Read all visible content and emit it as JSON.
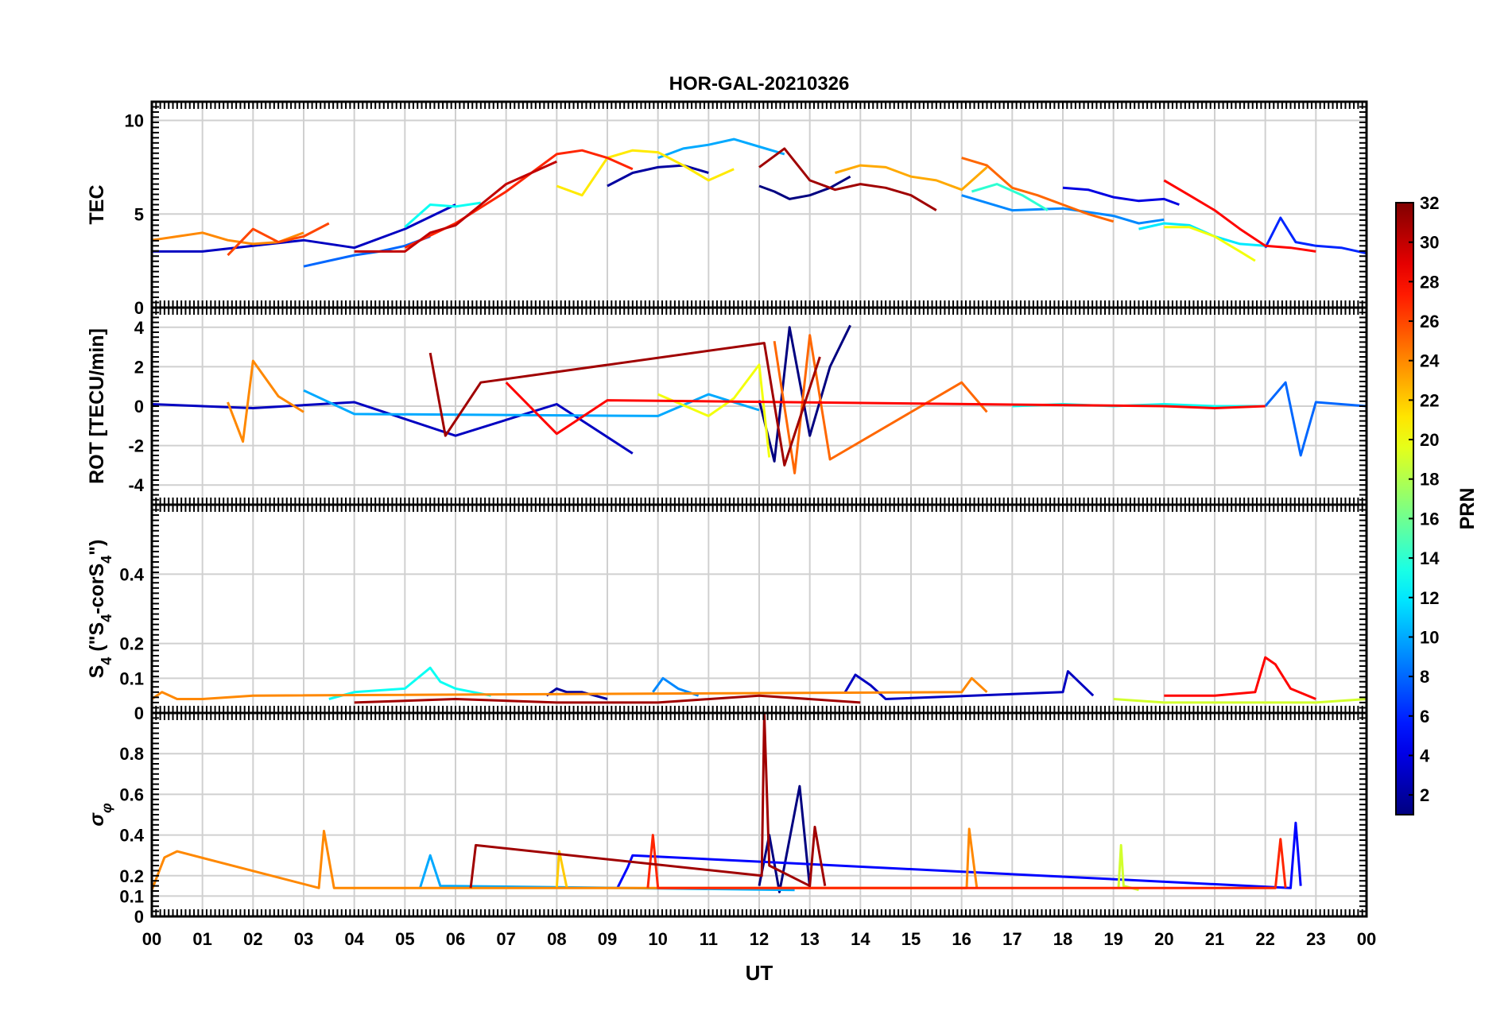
{
  "chart_data": {
    "type": "line",
    "title": "HOR-GAL-20210326",
    "xlabel": "UT",
    "x_ticks": [
      "00",
      "01",
      "02",
      "03",
      "04",
      "05",
      "06",
      "07",
      "08",
      "09",
      "10",
      "11",
      "12",
      "13",
      "14",
      "15",
      "16",
      "17",
      "18",
      "19",
      "20",
      "21",
      "22",
      "23",
      "00"
    ],
    "xlim_hours": [
      0,
      24
    ],
    "colorbar": {
      "label": "PRN",
      "range": [
        1,
        32
      ],
      "ticks": [
        "2",
        "4",
        "6",
        "8",
        "10",
        "12",
        "14",
        "16",
        "18",
        "20",
        "22",
        "24",
        "26",
        "28",
        "30",
        "32"
      ],
      "colormap": "jet"
    },
    "panels": [
      {
        "id": "tec",
        "ylabel": "TEC",
        "ylim": [
          0,
          11
        ],
        "yticks": [
          0,
          5,
          10
        ],
        "ytick_labels": [
          "0",
          "5",
          "10"
        ],
        "series": [
          {
            "prn": 1,
            "x": [
              12.0,
              12.3,
              12.6,
              13.0,
              13.4,
              13.8
            ],
            "y": [
              6.5,
              6.2,
              5.8,
              6.0,
              6.4,
              7.0
            ]
          },
          {
            "prn": 2,
            "x": [
              9.0,
              9.5,
              10.0,
              10.5,
              11.0
            ],
            "y": [
              6.5,
              7.2,
              7.5,
              7.6,
              7.2
            ]
          },
          {
            "prn": 3,
            "x": [
              0.0,
              1.0,
              2.0,
              3.0,
              4.0,
              5.0,
              6.0
            ],
            "y": [
              3.0,
              3.0,
              3.3,
              3.6,
              3.2,
              4.2,
              5.5
            ]
          },
          {
            "prn": 4,
            "x": [
              18.0,
              18.5,
              19.0,
              19.5,
              20.0,
              20.3
            ],
            "y": [
              6.4,
              6.3,
              5.9,
              5.7,
              5.8,
              5.5
            ]
          },
          {
            "prn": 6,
            "x": [
              22.0,
              22.3,
              22.6,
              23.0,
              23.5,
              24.0
            ],
            "y": [
              3.2,
              4.8,
              3.5,
              3.3,
              3.2,
              2.9
            ]
          },
          {
            "prn": 8,
            "x": [
              3.0,
              3.5,
              4.0,
              4.5,
              5.0,
              5.5
            ],
            "y": [
              2.2,
              2.5,
              2.8,
              3.0,
              3.3,
              3.8
            ]
          },
          {
            "prn": 9,
            "x": [
              16.0,
              17.0,
              18.0,
              19.0,
              19.5,
              20.0
            ],
            "y": [
              6.0,
              5.2,
              5.3,
              4.9,
              4.5,
              4.7
            ]
          },
          {
            "prn": 10,
            "x": [
              10.0,
              10.5,
              11.0,
              11.5,
              12.0,
              12.5
            ],
            "y": [
              8.0,
              8.5,
              8.7,
              9.0,
              8.6,
              8.2
            ]
          },
          {
            "prn": 12,
            "x": [
              19.5,
              20.0,
              20.5,
              21.0,
              21.5,
              22.0
            ],
            "y": [
              4.2,
              4.5,
              4.4,
              3.8,
              3.4,
              3.3
            ]
          },
          {
            "prn": 13,
            "x": [
              5.0,
              5.5,
              6.0,
              6.5
            ],
            "y": [
              4.3,
              5.5,
              5.4,
              5.6
            ]
          },
          {
            "prn": 14,
            "x": [
              16.2,
              16.7,
              17.2,
              17.7
            ],
            "y": [
              6.2,
              6.6,
              6.0,
              5.2
            ]
          },
          {
            "prn": 20,
            "x": [
              20.0,
              20.5,
              21.0,
              21.5,
              21.8
            ],
            "y": [
              4.3,
              4.3,
              3.8,
              3.0,
              2.5
            ]
          },
          {
            "prn": 21,
            "x": [
              8.0,
              8.5,
              9.0,
              9.5,
              10.0,
              10.5,
              11.0,
              11.5
            ],
            "y": [
              6.5,
              6.0,
              8.0,
              8.4,
              8.3,
              7.6,
              6.8,
              7.4
            ]
          },
          {
            "prn": 23,
            "x": [
              13.5,
              14.0,
              14.5,
              15.0,
              15.5,
              16.0,
              16.5
            ],
            "y": [
              7.2,
              7.6,
              7.5,
              7.0,
              6.8,
              6.3,
              7.5
            ]
          },
          {
            "prn": 24,
            "x": [
              0.0,
              0.5,
              1.0,
              1.5,
              2.0,
              2.5,
              3.0
            ],
            "y": [
              3.6,
              3.8,
              4.0,
              3.6,
              3.4,
              3.5,
              4.0
            ]
          },
          {
            "prn": 25,
            "x": [
              16.0,
              16.5,
              17.0,
              17.5,
              18.0,
              18.5,
              19.0
            ],
            "y": [
              8.0,
              7.6,
              6.4,
              6.0,
              5.5,
              5.0,
              4.6
            ]
          },
          {
            "prn": 26,
            "x": [
              1.5,
              2.0,
              2.5,
              3.0,
              3.5
            ],
            "y": [
              2.8,
              4.2,
              3.5,
              3.8,
              4.5
            ]
          },
          {
            "prn": 27,
            "x": [
              5.0,
              6.0,
              7.0,
              7.5,
              8.0,
              8.5,
              9.0,
              9.5
            ],
            "y": [
              3.2,
              4.5,
              6.2,
              7.2,
              8.2,
              8.4,
              8.0,
              7.4
            ]
          },
          {
            "prn": 28,
            "x": [
              20.0,
              20.5,
              21.0,
              21.5,
              22.0,
              22.5,
              23.0
            ],
            "y": [
              6.8,
              6.0,
              5.2,
              4.2,
              3.3,
              3.2,
              3.0
            ]
          },
          {
            "prn": 30,
            "x": [
              4.0,
              5.0,
              5.5,
              6.0,
              6.5,
              7.0,
              7.5,
              8.0
            ],
            "y": [
              3.0,
              3.0,
              4.0,
              4.4,
              5.5,
              6.6,
              7.2,
              7.8
            ]
          },
          {
            "prn": 31,
            "x": [
              12.0,
              12.5,
              13.0,
              13.5,
              14.0,
              14.5,
              15.0,
              15.5
            ],
            "y": [
              7.5,
              8.5,
              6.8,
              6.3,
              6.6,
              6.4,
              6.0,
              5.2
            ]
          }
        ]
      },
      {
        "id": "rot",
        "ylabel": "ROT [TECU/min]",
        "ylim": [
          -5,
          5
        ],
        "yticks": [
          -4,
          -2,
          0,
          2,
          4
        ],
        "ytick_labels": [
          "-4",
          "-2",
          "0",
          "2",
          "4"
        ],
        "series": [
          {
            "prn": 1,
            "x": [
              12.0,
              12.3,
              12.6,
              13.0,
              13.4,
              13.8
            ],
            "y": [
              0.3,
              -2.8,
              4.0,
              -1.5,
              2.0,
              4.1
            ]
          },
          {
            "prn": 3,
            "x": [
              0.0,
              2.0,
              4.0,
              6.0,
              8.0,
              9.5
            ],
            "y": [
              0.1,
              -0.1,
              0.2,
              -1.5,
              0.1,
              -2.4
            ]
          },
          {
            "prn": 8,
            "x": [
              22.0,
              22.4,
              22.7,
              23.0,
              24.0
            ],
            "y": [
              0.0,
              1.2,
              -2.5,
              0.2,
              0.0
            ]
          },
          {
            "prn": 10,
            "x": [
              3.0,
              4.0,
              10.0,
              11.0,
              12.0
            ],
            "y": [
              0.8,
              -0.4,
              -0.5,
              0.6,
              -0.2
            ]
          },
          {
            "prn": 13,
            "x": [
              17.0,
              18.0,
              19.0,
              20.0,
              21.0,
              22.0
            ],
            "y": [
              0.0,
              0.1,
              0.0,
              0.1,
              0.0,
              0.0
            ]
          },
          {
            "prn": 20,
            "x": [
              10.0,
              11.0,
              11.5,
              12.0,
              12.2
            ],
            "y": [
              0.6,
              -0.5,
              0.4,
              2.1,
              -2.6
            ]
          },
          {
            "prn": 24,
            "x": [
              1.5,
              1.8,
              2.0,
              2.5,
              3.0
            ],
            "y": [
              0.2,
              -1.8,
              2.3,
              0.5,
              -0.3
            ]
          },
          {
            "prn": 25,
            "x": [
              12.3,
              12.7,
              13.0,
              13.4,
              16.0,
              16.5
            ],
            "y": [
              3.3,
              -3.4,
              3.6,
              -2.7,
              1.2,
              -0.3
            ]
          },
          {
            "prn": 28,
            "x": [
              7.0,
              8.0,
              9.0,
              20.0,
              21.0,
              22.0
            ],
            "y": [
              1.2,
              -1.4,
              0.3,
              0.0,
              -0.1,
              0.0
            ]
          },
          {
            "prn": 31,
            "x": [
              5.5,
              5.8,
              6.5,
              12.1,
              12.5,
              13.2
            ],
            "y": [
              2.7,
              -1.5,
              1.2,
              3.2,
              -3.0,
              2.5
            ]
          }
        ]
      },
      {
        "id": "s4",
        "ylabel": "S4 (\"S4-corS4\")",
        "ylim": [
          0,
          0.6
        ],
        "yticks": [
          0,
          0.1,
          0.2,
          0.4
        ],
        "ytick_labels": [
          "0",
          "0.1",
          "0.2",
          "0.4"
        ],
        "series": [
          {
            "prn": 2,
            "x": [
              7.8,
              8.0,
              8.2,
              8.5,
              9.0
            ],
            "y": [
              0.05,
              0.07,
              0.06,
              0.06,
              0.04
            ]
          },
          {
            "prn": 3,
            "x": [
              13.7,
              13.9,
              14.2,
              14.5,
              18.0,
              18.1,
              18.6
            ],
            "y": [
              0.06,
              0.11,
              0.08,
              0.04,
              0.06,
              0.12,
              0.05
            ]
          },
          {
            "prn": 9,
            "x": [
              9.9,
              10.1,
              10.4,
              10.8
            ],
            "y": [
              0.06,
              0.1,
              0.07,
              0.05
            ]
          },
          {
            "prn": 13,
            "x": [
              3.5,
              4.0,
              5.0,
              5.5,
              5.7,
              6.0,
              6.7
            ],
            "y": [
              0.04,
              0.06,
              0.07,
              0.13,
              0.09,
              0.07,
              0.05
            ]
          },
          {
            "prn": 19,
            "x": [
              19.0,
              20.0,
              23.0,
              24.0
            ],
            "y": [
              0.04,
              0.03,
              0.03,
              0.04
            ]
          },
          {
            "prn": 24,
            "x": [
              0.0,
              0.2,
              0.5,
              1.0,
              2.0,
              16.0,
              16.2,
              16.5
            ],
            "y": [
              0.04,
              0.06,
              0.04,
              0.04,
              0.05,
              0.06,
              0.1,
              0.06
            ]
          },
          {
            "prn": 28,
            "x": [
              20.0,
              21.0,
              21.8,
              22.0,
              22.2,
              22.5,
              23.0
            ],
            "y": [
              0.05,
              0.05,
              0.06,
              0.16,
              0.14,
              0.07,
              0.04
            ]
          },
          {
            "prn": 31,
            "x": [
              4.0,
              6.0,
              8.0,
              10.0,
              12.0,
              14.0
            ],
            "y": [
              0.03,
              0.04,
              0.03,
              0.03,
              0.05,
              0.03
            ]
          }
        ]
      },
      {
        "id": "sigma_phi",
        "ylabel": "σφ",
        "ylim": [
          0,
          1
        ],
        "yticks": [
          0,
          0.1,
          0.2,
          0.4,
          0.6,
          0.8
        ],
        "ytick_labels": [
          "0",
          "0.1",
          "0.2",
          "0.4",
          "0.6",
          "0.8"
        ],
        "series": [
          {
            "prn": 1,
            "x": [
              12.0,
              12.2,
              12.4,
              12.8,
              13.0
            ],
            "y": [
              0.15,
              0.4,
              0.12,
              0.64,
              0.14
            ]
          },
          {
            "prn": 5,
            "x": [
              9.2,
              9.4,
              9.5,
              22.5,
              22.6,
              22.7
            ],
            "y": [
              0.14,
              0.24,
              0.3,
              0.14,
              0.46,
              0.15
            ]
          },
          {
            "prn": 10,
            "x": [
              5.3,
              5.5,
              5.7,
              12.7
            ],
            "y": [
              0.14,
              0.3,
              0.15,
              0.13
            ]
          },
          {
            "prn": 19,
            "x": [
              19.1,
              19.15,
              19.2,
              19.5
            ],
            "y": [
              0.14,
              0.35,
              0.15,
              0.13
            ]
          },
          {
            "prn": 22,
            "x": [
              8.0,
              8.05,
              8.2
            ],
            "y": [
              0.14,
              0.32,
              0.14
            ]
          },
          {
            "prn": 24,
            "x": [
              0.0,
              0.25,
              0.5,
              3.3,
              3.4,
              3.6,
              16.1,
              16.15,
              16.3
            ],
            "y": [
              0.13,
              0.29,
              0.32,
              0.14,
              0.42,
              0.14,
              0.14,
              0.43,
              0.14
            ]
          },
          {
            "prn": 27,
            "x": [
              9.8,
              9.9,
              10.0,
              22.2,
              22.3,
              22.4
            ],
            "y": [
              0.14,
              0.4,
              0.14,
              0.14,
              0.38,
              0.14
            ]
          },
          {
            "prn": 31,
            "x": [
              6.3,
              6.4,
              12.05,
              12.1,
              12.2,
              13.0,
              13.1,
              13.3
            ],
            "y": [
              0.14,
              0.35,
              0.2,
              1.0,
              0.25,
              0.15,
              0.44,
              0.15
            ]
          }
        ]
      }
    ]
  }
}
